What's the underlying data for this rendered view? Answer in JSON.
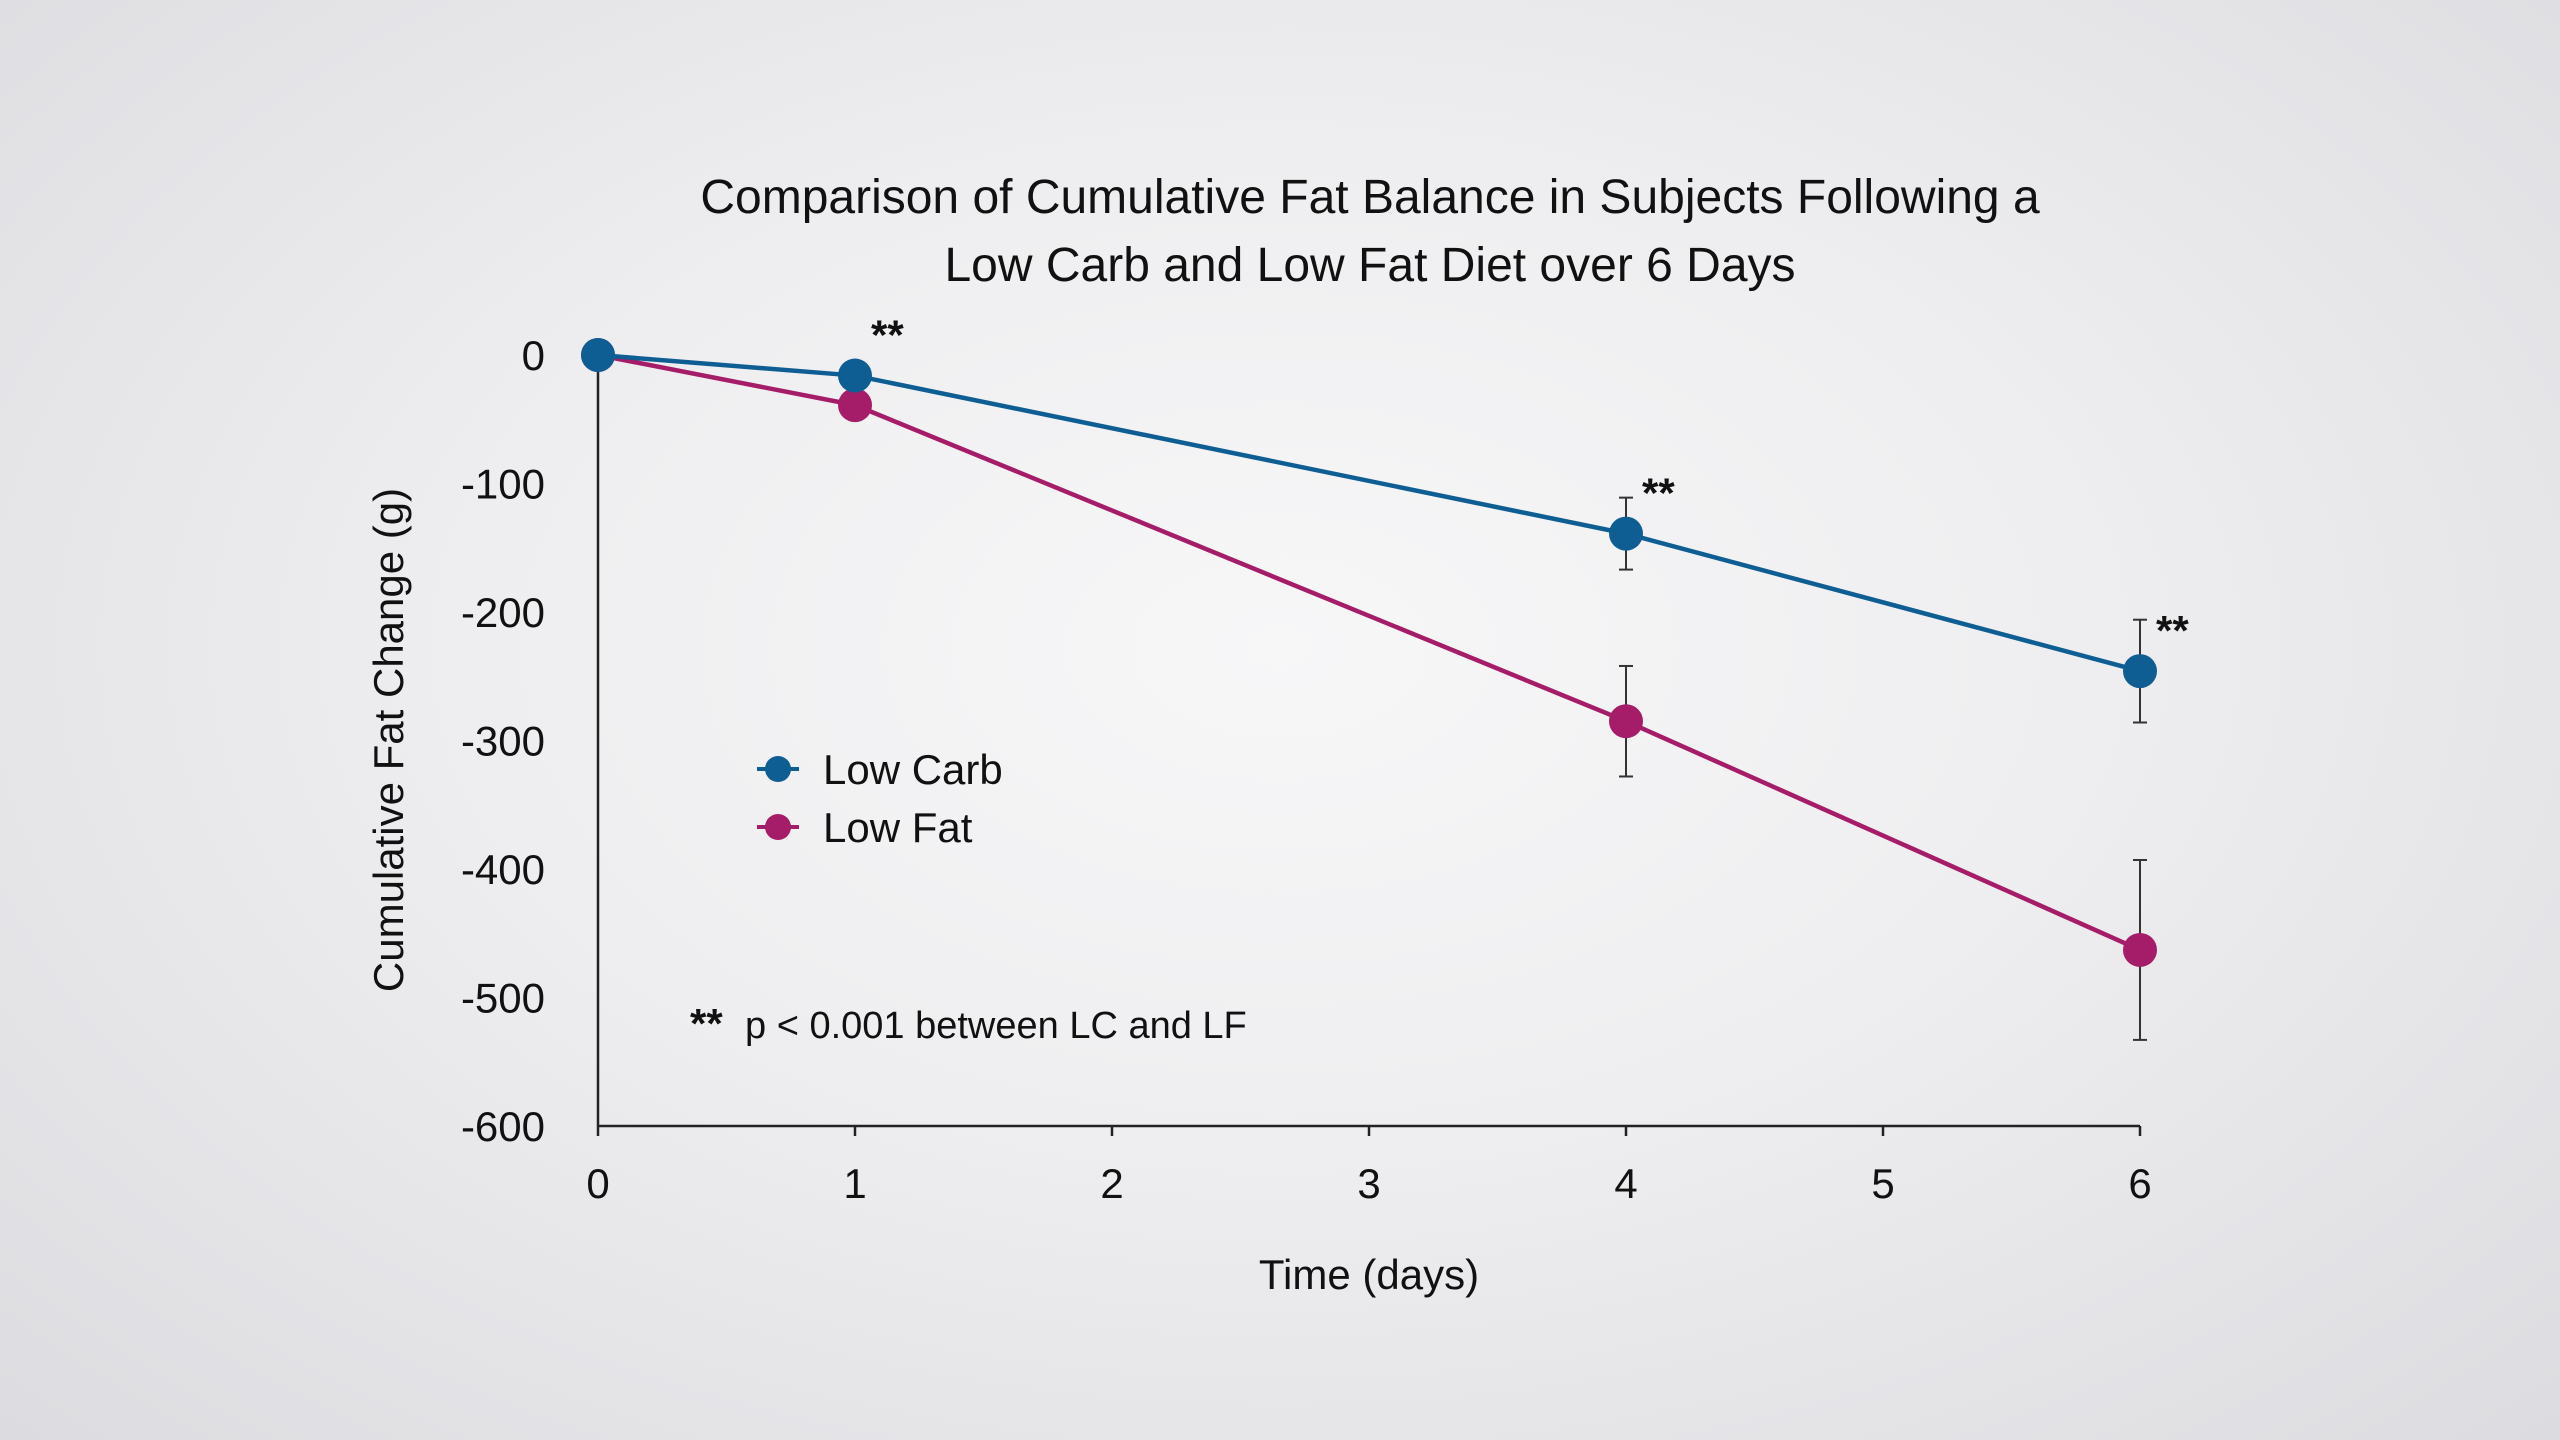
{
  "chart_data": {
    "type": "line",
    "title": [
      "Comparison of Cumulative Fat Balance in Subjects Following a",
      "Low Carb and Low Fat Diet over 6 Days"
    ],
    "xlabel": "Time (days)",
    "ylabel": "Cumulative Fat Change (g)",
    "xlim": [
      0,
      6
    ],
    "ylim": [
      -600,
      0
    ],
    "xticks": [
      0,
      1,
      2,
      3,
      4,
      5,
      6
    ],
    "xtick_labels": [
      "0",
      "1",
      "2",
      "3",
      "4",
      "5",
      "6"
    ],
    "yticks": [
      0,
      -100,
      -200,
      -300,
      -400,
      -500,
      -600
    ],
    "ytick_labels": [
      "0",
      "-100",
      "-200",
      "-300",
      "-400",
      "-500",
      "-600"
    ],
    "grid": false,
    "legend_position": "center-left",
    "series": [
      {
        "name": "Low Carb",
        "color": "#0f5e93",
        "x": [
          0,
          1,
          4,
          6
        ],
        "y": [
          0,
          -16,
          -139,
          -246
        ],
        "error": [
          0,
          0,
          28,
          40
        ]
      },
      {
        "name": "Low Fat",
        "color": "#a51d68",
        "x": [
          0,
          1,
          4,
          6
        ],
        "y": [
          0,
          -39,
          -285,
          -463
        ],
        "error": [
          0,
          0,
          43,
          70
        ]
      }
    ],
    "significance": [
      {
        "x": 1,
        "y": -16,
        "label": "**"
      },
      {
        "x": 4,
        "y": -139,
        "label": "**"
      },
      {
        "x": 6,
        "y": -246,
        "label": "**"
      }
    ],
    "footnote": {
      "marker": "**",
      "text": "p < 0.001 between LC and LF"
    }
  }
}
